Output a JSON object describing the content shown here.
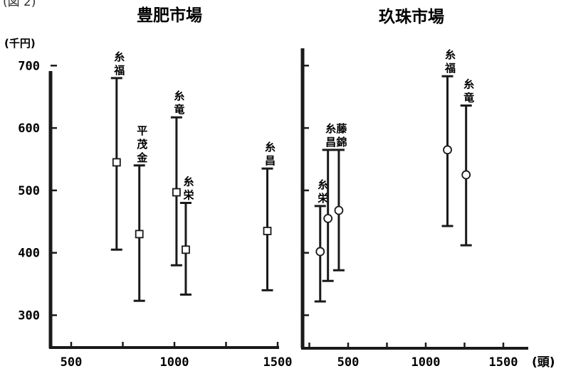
{
  "figure_label": "(図 2)",
  "chart_data": [
    {
      "type": "scatter",
      "title": "豊肥市場",
      "ylabel": "(千円)",
      "xlabel": "",
      "xlim": [
        300,
        1600
      ],
      "ylim": [
        250,
        710
      ],
      "x_ticks": [
        500,
        1000,
        1500
      ],
      "y_ticks": [
        300,
        400,
        500,
        600,
        700
      ],
      "marker": "square",
      "grid": false,
      "points": [
        {
          "label": "糸福",
          "x": 720,
          "mean": 545,
          "min": 405,
          "max": 680
        },
        {
          "label": "平茂金",
          "x": 830,
          "mean": 430,
          "min": 323,
          "max": 540
        },
        {
          "label": "糸竜",
          "x": 1010,
          "mean": 497,
          "min": 380,
          "max": 617
        },
        {
          "label": "糸栄",
          "x": 1055,
          "mean": 405,
          "min": 333,
          "max": 480
        },
        {
          "label": "糸昌",
          "x": 1450,
          "mean": 435,
          "min": 340,
          "max": 535
        }
      ]
    },
    {
      "type": "scatter",
      "title": "玖珠市場",
      "xlabel": "(頭)",
      "xlim": [
        150,
        1650
      ],
      "ylim": [
        250,
        710
      ],
      "x_ticks": [
        500,
        1000,
        1500
      ],
      "marker": "circle",
      "grid": false,
      "points": [
        {
          "label": "糸栄",
          "x": 320,
          "mean": 402,
          "min": 322,
          "max": 475
        },
        {
          "label": "糸昌",
          "x": 370,
          "mean": 455,
          "min": 355,
          "max": 565
        },
        {
          "label": "藤錦",
          "x": 440,
          "mean": 468,
          "min": 372,
          "max": 565
        },
        {
          "label": "糸福",
          "x": 1140,
          "mean": 565,
          "min": 443,
          "max": 683
        },
        {
          "label": "糸竜",
          "x": 1260,
          "mean": 525,
          "min": 412,
          "max": 636
        }
      ]
    }
  ]
}
